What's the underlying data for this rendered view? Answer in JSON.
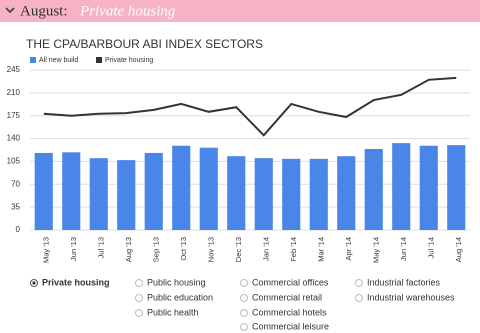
{
  "header": {
    "month": "August:",
    "sector": "Private housing"
  },
  "chart_data": {
    "type": "bar",
    "title": "THE CPA/BARBOUR ABI INDEX SECTORS",
    "categories": [
      "May '13",
      "Jun '13",
      "Jul '13",
      "Aug '13",
      "Sep '13",
      "Oct '13",
      "Nov '13",
      "Dec '13",
      "Jan '14",
      "Feb '14",
      "Mar '14",
      "Apr '14",
      "May '14",
      "Jun '14",
      "Jul '14",
      "Aug '14"
    ],
    "series": [
      {
        "name": "All new build",
        "type": "bar",
        "color": "#4a86e8",
        "values": [
          118,
          119,
          110,
          107,
          118,
          129,
          126,
          113,
          110,
          109,
          109,
          113,
          124,
          133,
          129,
          130
        ]
      },
      {
        "name": "Private housing",
        "type": "line",
        "color": "#333333",
        "values": [
          178,
          175,
          178,
          179,
          184,
          193,
          181,
          188,
          145,
          193,
          181,
          173,
          199,
          207,
          230,
          233
        ]
      }
    ],
    "ylim": [
      0,
      245
    ],
    "yticks": [
      0,
      35,
      70,
      105,
      140,
      175,
      210,
      245
    ],
    "grid": true
  },
  "options": [
    [
      "Private housing"
    ],
    [
      "Public housing",
      "Public education",
      "Public health"
    ],
    [
      "Commercial offices",
      "Commercial retail",
      "Commercial hotels",
      "Commercial leisure"
    ],
    [
      "Industrial factories",
      "Industrial warehouses"
    ]
  ]
}
